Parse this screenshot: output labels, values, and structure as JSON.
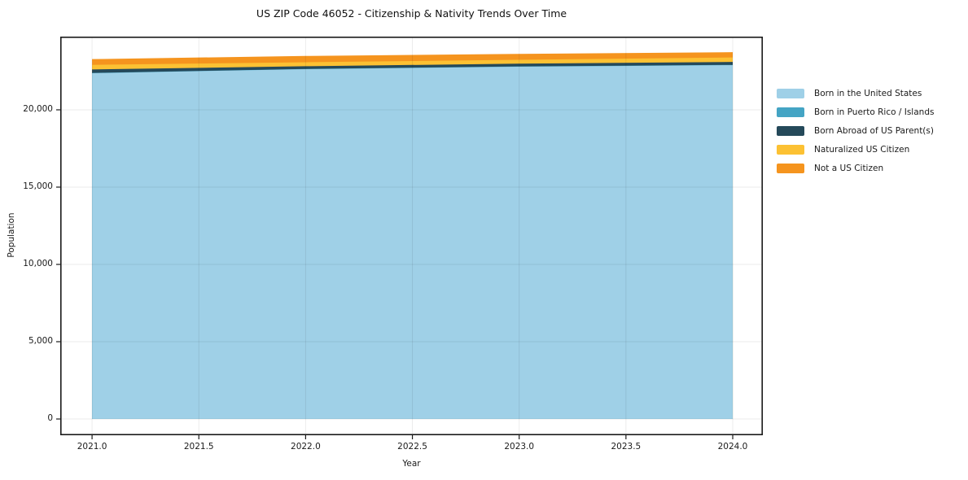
{
  "chart_data": {
    "type": "area",
    "stacked": true,
    "title": "US ZIP Code 46052 - Citizenship & Nativity Trends Over Time",
    "xlabel": "Year",
    "ylabel": "Population",
    "x": [
      2021,
      2022,
      2023,
      2024
    ],
    "series": [
      {
        "name": "Born in the United States",
        "color": "#9fd0e7",
        "values": [
          22370,
          22630,
          22790,
          22890
        ]
      },
      {
        "name": "Born in Puerto Rico / Islands",
        "color": "#44a4c4",
        "values": [
          15,
          15,
          20,
          20
        ]
      },
      {
        "name": "Born Abroad of US Parent(s)",
        "color": "#25495a",
        "values": [
          225,
          175,
          175,
          185
        ]
      },
      {
        "name": "Naturalized US Citizen",
        "color": "#fcc133",
        "values": [
          300,
          260,
          250,
          290
        ]
      },
      {
        "name": "Not a US Citizen",
        "color": "#f5941e",
        "values": [
          370,
          405,
          385,
          345
        ]
      }
    ],
    "xticks": {
      "values": [
        2021,
        2021.5,
        2022,
        2022.5,
        2023,
        2023.5,
        2024
      ],
      "labels": [
        "2021.0",
        "2021.5",
        "2022.0",
        "2022.5",
        "2023.0",
        "2023.5",
        "2024.0"
      ]
    },
    "yticks": {
      "values": [
        0,
        5000,
        10000,
        15000,
        20000
      ],
      "labels": [
        "0",
        "5,000",
        "10,000",
        "15,000",
        "20,000"
      ]
    },
    "xlim": [
      2020.851,
      2024.141
    ],
    "ylim": [
      -1052,
      24736
    ],
    "grid": true,
    "legend_position": "right"
  },
  "colors": {
    "background": "#ffffff",
    "frame": "#1a1a1a",
    "grid_over": "rgba(0,0,0,0.08)",
    "text": "#1a1a1a"
  }
}
